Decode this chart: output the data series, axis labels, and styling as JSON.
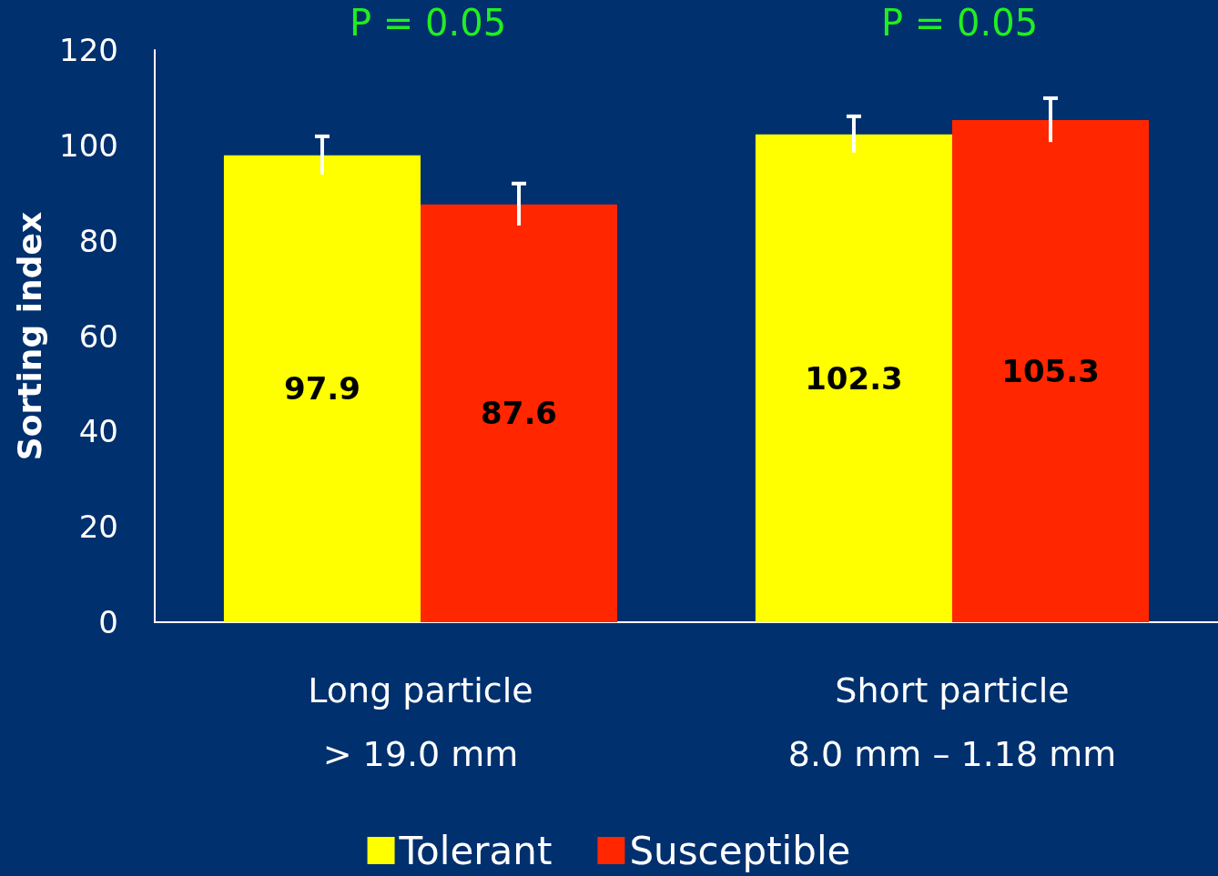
{
  "chart_data": {
    "type": "bar",
    "ylabel": "Sorting index",
    "categories": [
      "Long particle\n> 19.0 mm",
      "Short particle\n8.0 mm – 1.18 mm"
    ],
    "series": [
      {
        "name": "Tolerant",
        "color": "#ffff00",
        "values": [
          97.9,
          102.3
        ],
        "errors": [
          4,
          3.8
        ]
      },
      {
        "name": "Susceptible",
        "color": "#ff2600",
        "values": [
          87.6,
          105.3
        ],
        "errors": [
          4.4,
          4.6
        ]
      }
    ],
    "ylim": [
      0,
      120
    ],
    "yticks": [
      0,
      20,
      40,
      60,
      80,
      100,
      120
    ],
    "grid": false,
    "legend": "bottom",
    "data_labels": true,
    "annotations": [
      "P = 0.05",
      "P = 0.05"
    ]
  }
}
